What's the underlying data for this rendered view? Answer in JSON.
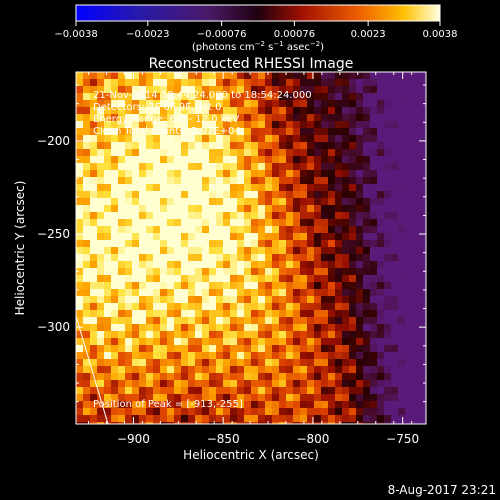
{
  "chart_data": {
    "type": "heatmap",
    "title": "Reconstructed RHESSI Image",
    "xlabel": "Heliocentric X (arcsec)",
    "ylabel": "Heliocentric Y (arcsec)",
    "xlim": [
      -932,
      -737
    ],
    "ylim": [
      -352,
      -163
    ],
    "x_ticks": [
      -900,
      -850,
      -800,
      -750
    ],
    "y_ticks": [
      -200,
      -250,
      -300
    ],
    "x_tick_labels": [
      "−900",
      "−850",
      "−800",
      "−750"
    ],
    "y_tick_labels": [
      "−200",
      "−250",
      "−300"
    ],
    "colorbar": {
      "range": [
        -0.0038,
        0.0038
      ],
      "ticks": [
        -0.0038,
        -0.0023,
        -0.00076,
        0.00076,
        0.0023,
        0.0038
      ],
      "tick_labels": [
        "−0.0038",
        "−0.0023",
        "−0.00076",
        "0.00076",
        "0.0023",
        "0.0038"
      ],
      "unit_prefix": "(photons cm",
      "unit_exp1": "−2",
      "unit_mid": " s",
      "unit_exp2": "−1",
      "unit_mid2": " asec",
      "unit_exp3": "−2",
      "unit_suffix": ")"
    },
    "annotations": [
      "21-Nov-2014 18:44:24.000 to 18:54:24.000",
      "Detectors: 3F 6F 9F, Att 0",
      "Energy Range: 6.0 - 12.0 keV",
      "Clean    Total counts: 2.97E+04"
    ],
    "peak_label": "Position of Peak = [-913,-255]",
    "peak": [
      -913,
      -255
    ]
  },
  "footer": {
    "timestamp": "8-Aug-2017 23:21"
  }
}
